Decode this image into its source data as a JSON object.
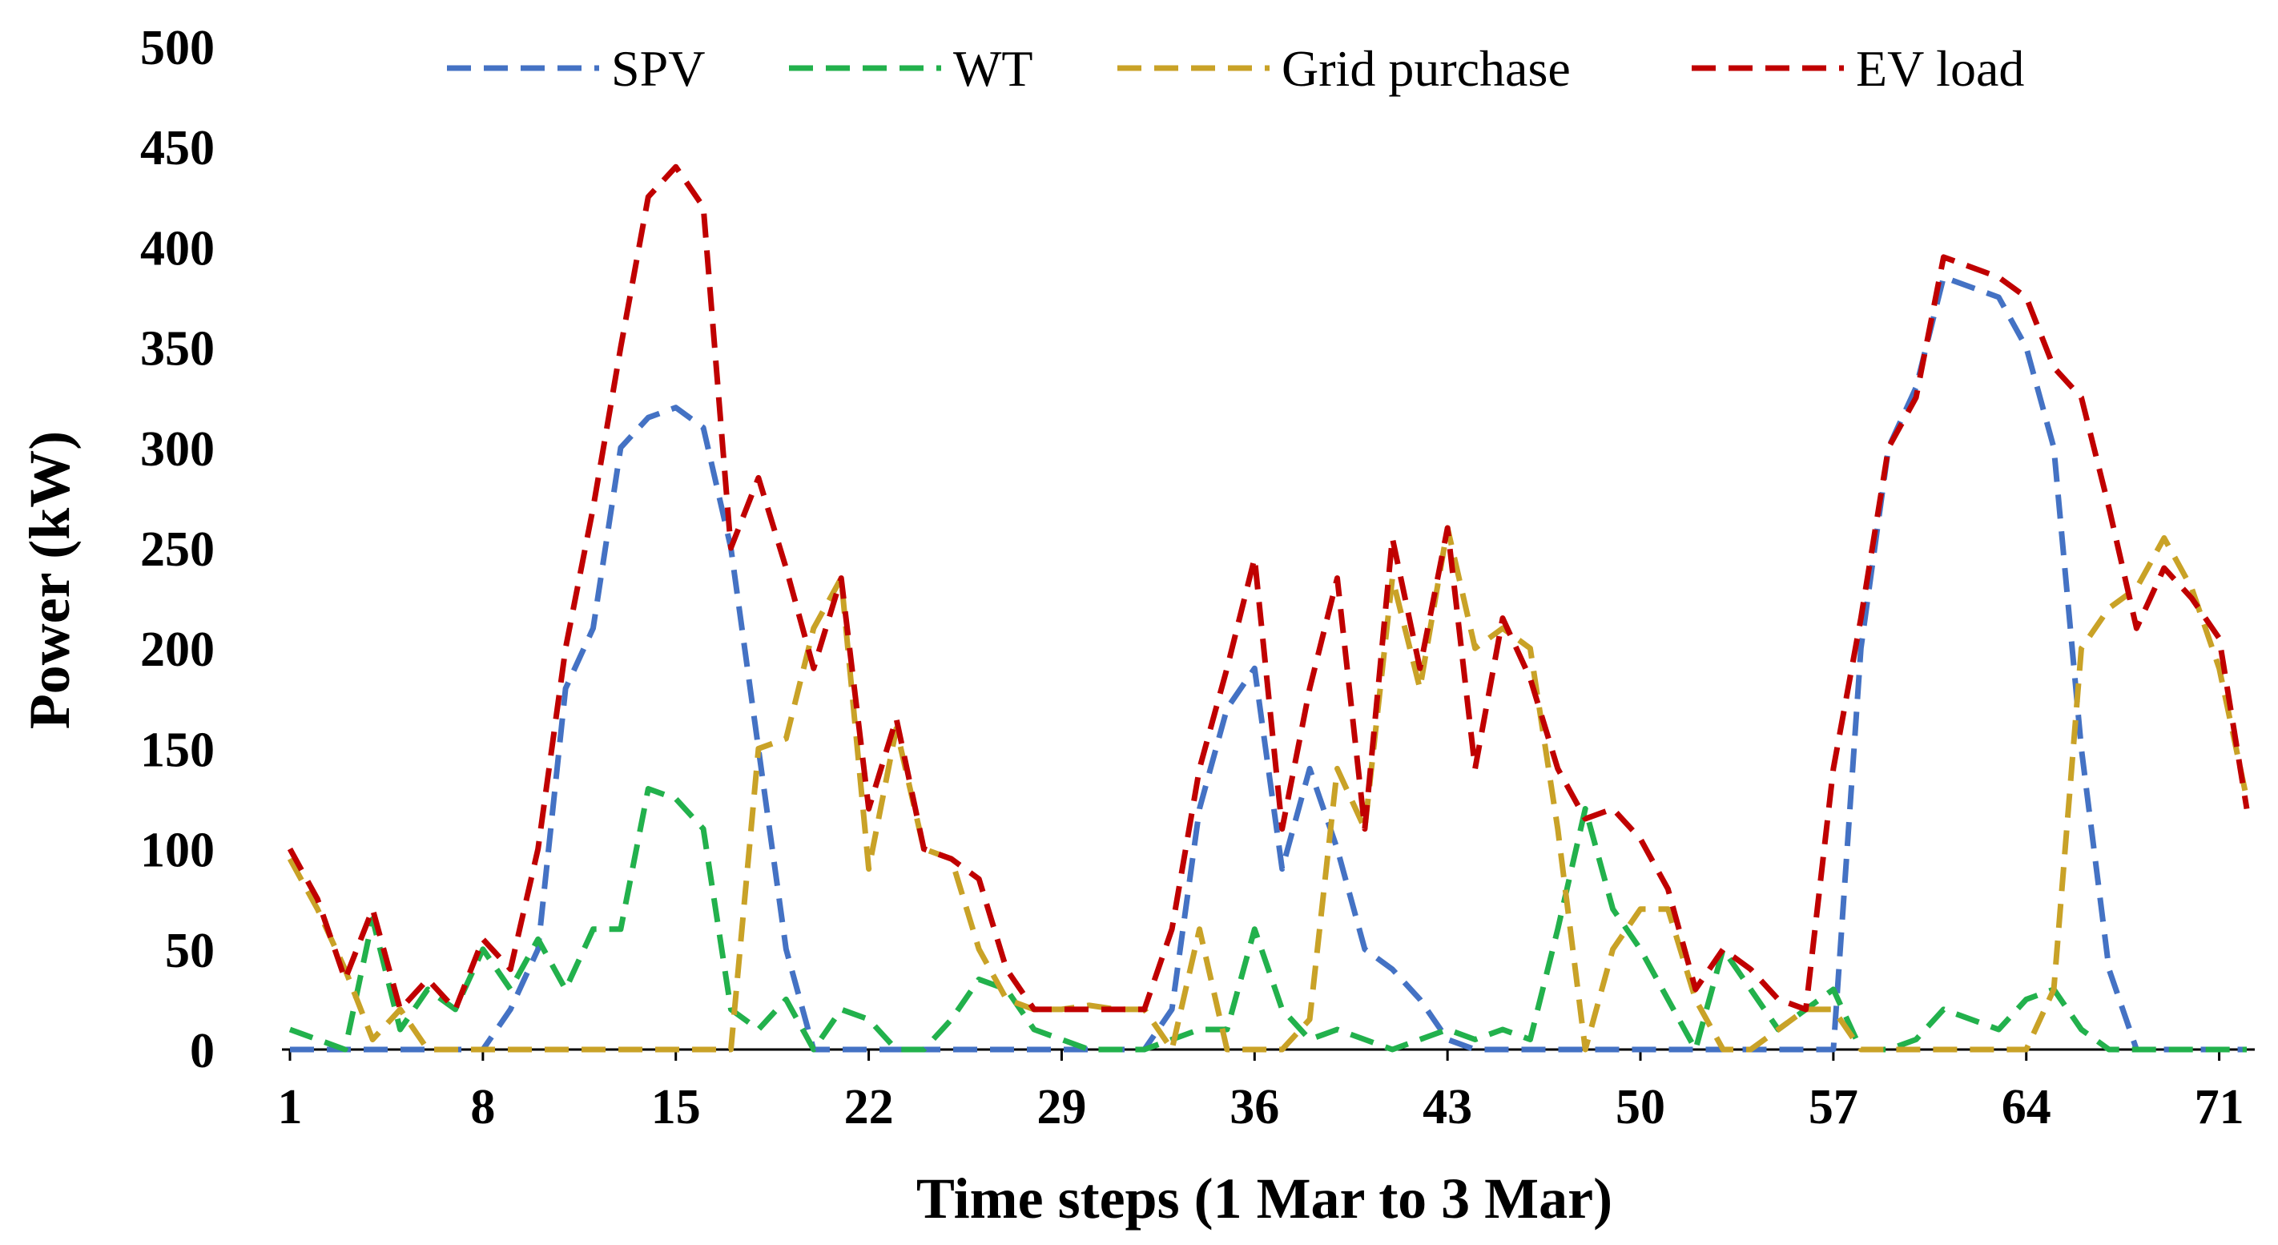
{
  "chart_data": {
    "type": "line",
    "title": "",
    "xlabel": "Time steps (1 Mar to 3 Mar)",
    "ylabel": "Power (kW)",
    "ylim": [
      0,
      500
    ],
    "yticks": [
      0,
      50,
      100,
      150,
      200,
      250,
      300,
      350,
      400,
      450,
      500
    ],
    "xlim": [
      1,
      72
    ],
    "xticks": [
      1,
      8,
      15,
      22,
      29,
      36,
      43,
      50,
      57,
      64,
      71
    ],
    "grid": false,
    "legend_position": "top",
    "line_style": "dashed",
    "x": [
      1,
      2,
      3,
      4,
      5,
      6,
      7,
      8,
      9,
      10,
      11,
      12,
      13,
      14,
      15,
      16,
      17,
      18,
      19,
      20,
      21,
      22,
      23,
      24,
      25,
      26,
      27,
      28,
      29,
      30,
      31,
      32,
      33,
      34,
      35,
      36,
      37,
      38,
      39,
      40,
      41,
      42,
      43,
      44,
      45,
      46,
      47,
      48,
      49,
      50,
      51,
      52,
      53,
      54,
      55,
      56,
      57,
      58,
      59,
      60,
      61,
      62,
      63,
      64,
      65,
      66,
      67,
      68,
      69,
      70,
      71,
      72
    ],
    "series": [
      {
        "name": "SPV",
        "color": "#4472C4",
        "values": [
          0,
          0,
          0,
          0,
          0,
          0,
          0,
          0,
          20,
          50,
          180,
          210,
          300,
          315,
          320,
          310,
          250,
          150,
          50,
          0,
          0,
          0,
          0,
          0,
          0,
          0,
          0,
          0,
          0,
          0,
          0,
          0,
          20,
          120,
          170,
          190,
          90,
          140,
          100,
          50,
          40,
          25,
          5,
          0,
          0,
          0,
          0,
          0,
          0,
          0,
          0,
          0,
          0,
          0,
          0,
          0,
          0,
          200,
          300,
          330,
          385,
          380,
          375,
          350,
          300,
          150,
          40,
          0,
          0,
          0,
          0,
          0
        ]
      },
      {
        "name": "WT",
        "color": "#22B14C",
        "values": [
          10,
          5,
          0,
          65,
          10,
          30,
          20,
          50,
          30,
          55,
          30,
          60,
          60,
          130,
          125,
          110,
          20,
          10,
          25,
          0,
          20,
          15,
          0,
          0,
          15,
          35,
          30,
          10,
          5,
          0,
          0,
          0,
          5,
          10,
          10,
          60,
          20,
          5,
          10,
          5,
          0,
          5,
          10,
          5,
          10,
          5,
          60,
          120,
          70,
          50,
          25,
          0,
          50,
          30,
          10,
          20,
          30,
          0,
          0,
          5,
          20,
          15,
          10,
          25,
          30,
          10,
          0,
          0,
          0,
          0,
          0,
          0
        ]
      },
      {
        "name": "Grid purchase",
        "color": "#C9A227",
        "values": [
          95,
          70,
          40,
          5,
          20,
          0,
          0,
          0,
          0,
          0,
          0,
          0,
          0,
          0,
          0,
          0,
          0,
          150,
          155,
          210,
          235,
          90,
          160,
          100,
          95,
          50,
          25,
          20,
          20,
          22,
          20,
          20,
          0,
          60,
          0,
          0,
          0,
          15,
          140,
          110,
          235,
          180,
          260,
          200,
          210,
          200,
          110,
          0,
          50,
          70,
          70,
          25,
          0,
          0,
          10,
          20,
          20,
          0,
          0,
          0,
          0,
          0,
          0,
          0,
          30,
          200,
          220,
          230,
          255,
          230,
          190,
          125
        ]
      },
      {
        "name": "EV load",
        "color": "#C00000",
        "values": [
          100,
          75,
          35,
          70,
          20,
          35,
          20,
          55,
          40,
          100,
          200,
          270,
          350,
          425,
          440,
          420,
          250,
          285,
          240,
          190,
          235,
          120,
          165,
          100,
          95,
          85,
          40,
          20,
          20,
          20,
          20,
          20,
          60,
          140,
          190,
          245,
          110,
          180,
          235,
          110,
          255,
          190,
          260,
          140,
          215,
          185,
          140,
          115,
          120,
          105,
          80,
          30,
          50,
          40,
          25,
          20,
          140,
          215,
          300,
          325,
          395,
          390,
          385,
          375,
          340,
          325,
          270,
          210,
          240,
          225,
          205,
          120
        ]
      }
    ]
  }
}
